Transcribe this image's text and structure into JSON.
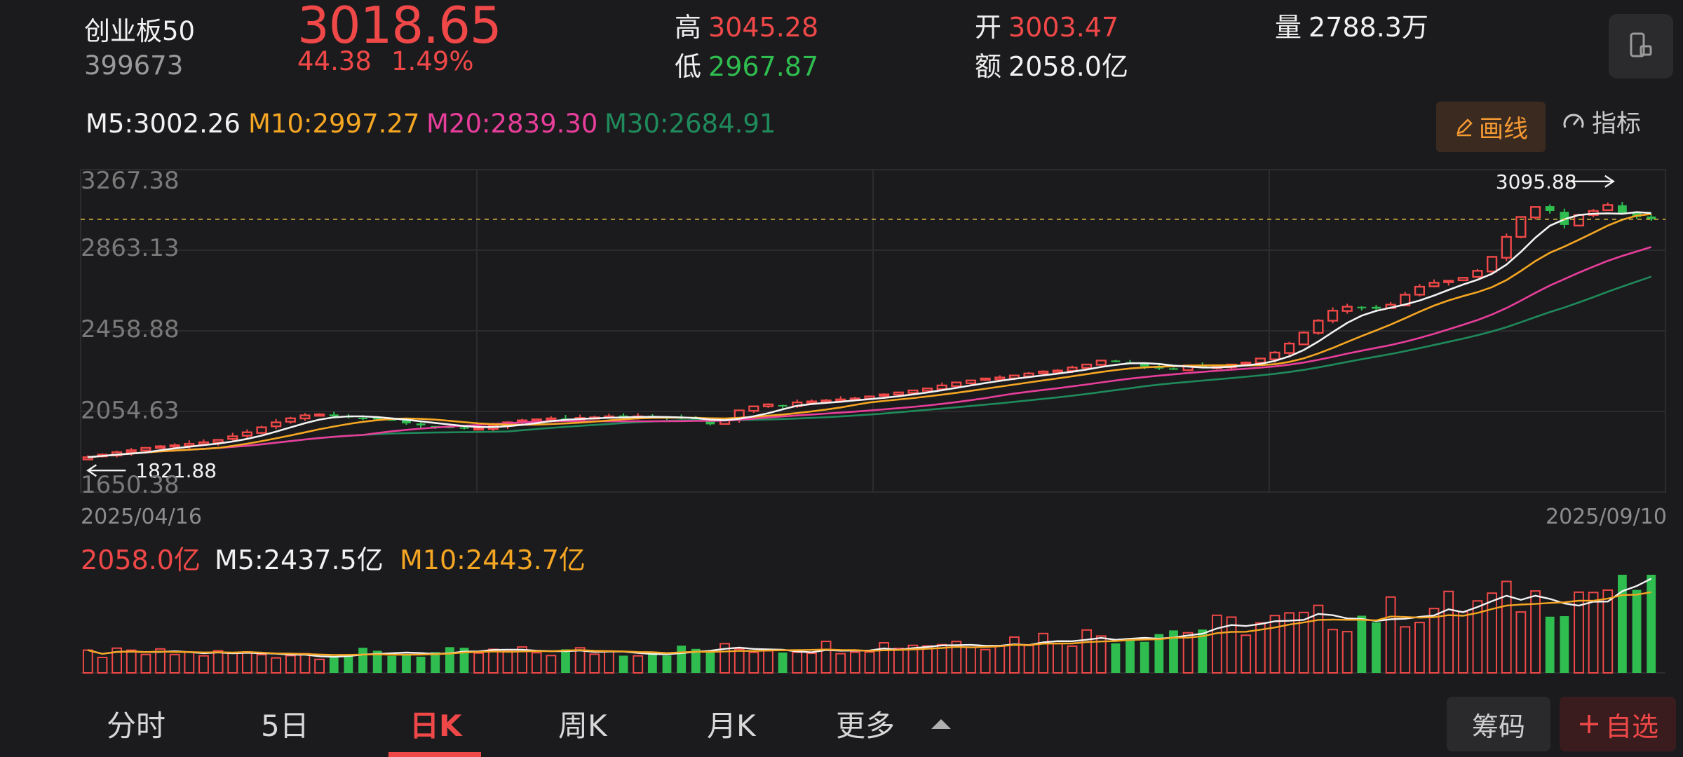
{
  "header": {
    "name": "创业板50",
    "code": "399673",
    "price": "3018.65",
    "change": "44.38",
    "change_pct": "1.49%",
    "high_label": "高",
    "high": "3045.28",
    "low_label": "低",
    "low": "2967.87",
    "open_label": "开",
    "open": "3003.47",
    "amount_label": "额",
    "amount": "2058.0亿",
    "volume_label": "量",
    "volume": "2788.3万",
    "device_icon": "phone-rotate-icon"
  },
  "ma_legend": {
    "m5": "M5:3002.26",
    "m10": "M10:2997.27",
    "m20": "M20:2839.30",
    "m30": "M30:2684.91"
  },
  "tools": {
    "draw_label": "画线",
    "draw_icon": "pencil-icon",
    "indicator_label": "指标",
    "indicator_icon": "gauge-icon"
  },
  "chart_data": {
    "type": "candlestick",
    "y_ticks": [
      "3267.38",
      "2863.13",
      "2458.88",
      "2054.63",
      "1650.38"
    ],
    "ylim": [
      1650.38,
      3267.38
    ],
    "start_date": "2025/04/16",
    "end_date": "2025/09/10",
    "max_label": "3095.88",
    "min_label": "1821.88",
    "last_close": 3018.65,
    "closes": [
      1825,
      1838,
      1850,
      1860,
      1872,
      1880,
      1885,
      1892,
      1900,
      1912,
      1930,
      1950,
      1975,
      2000,
      2020,
      2035,
      2040,
      2030,
      2025,
      2020,
      2015,
      2010,
      1995,
      1985,
      1980,
      1975,
      1972,
      1970,
      1985,
      2000,
      2010,
      2015,
      2020,
      2018,
      2022,
      2025,
      2030,
      2028,
      2030,
      2025,
      2022,
      2018,
      2012,
      1990,
      2010,
      2060,
      2080,
      2090,
      2085,
      2100,
      2105,
      2110,
      2115,
      2120,
      2130,
      2140,
      2150,
      2160,
      2170,
      2185,
      2200,
      2210,
      2220,
      2225,
      2235,
      2245,
      2255,
      2260,
      2275,
      2290,
      2310,
      2305,
      2300,
      2280,
      2270,
      2265,
      2285,
      2275,
      2280,
      2290,
      2300,
      2320,
      2350,
      2395,
      2450,
      2510,
      2560,
      2580,
      2575,
      2570,
      2590,
      2640,
      2680,
      2700,
      2710,
      2725,
      2760,
      2830,
      2930,
      3030,
      3080,
      3060,
      2990,
      3040,
      3060,
      3090,
      3050,
      3030,
      3018.65
    ],
    "ma5_last": 3002.26,
    "ma10_last": 2997.27,
    "ma20_last": 2839.3,
    "ma30_last": 2684.91,
    "colors": {
      "up": "#f04848",
      "down": "#2fbd4f",
      "ma5": "#f2f2f2",
      "ma10": "#f5a623",
      "ma20": "#e83e9b",
      "ma30": "#1f8a5b",
      "price_line": "#e8c64a"
    }
  },
  "volume": {
    "current": "2058.0亿",
    "m5": "M5:2437.5亿",
    "m10": "M10:2443.7亿",
    "max_value": 3000
  },
  "tabs": [
    "分时",
    "5日",
    "日K",
    "周K",
    "月K",
    "更多"
  ],
  "active_tab": "日K",
  "bottom_buttons": {
    "chips": "筹码",
    "watchlist": "自选",
    "watchlist_icon": "plus-icon"
  }
}
